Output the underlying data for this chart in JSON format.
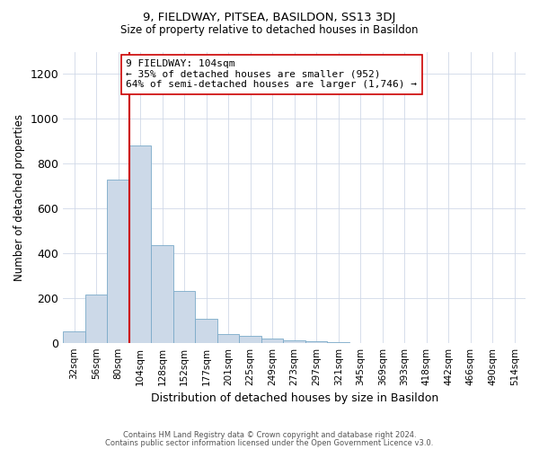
{
  "title1": "9, FIELDWAY, PITSEA, BASILDON, SS13 3DJ",
  "title2": "Size of property relative to detached houses in Basildon",
  "xlabel": "Distribution of detached houses by size in Basildon",
  "ylabel": "Number of detached properties",
  "categories": [
    "32sqm",
    "56sqm",
    "80sqm",
    "104sqm",
    "128sqm",
    "152sqm",
    "177sqm",
    "201sqm",
    "225sqm",
    "249sqm",
    "273sqm",
    "297sqm",
    "321sqm",
    "345sqm",
    "369sqm",
    "393sqm",
    "418sqm",
    "442sqm",
    "466sqm",
    "490sqm",
    "514sqm"
  ],
  "values": [
    50,
    215,
    730,
    880,
    435,
    230,
    105,
    40,
    30,
    20,
    10,
    5,
    2,
    0,
    0,
    0,
    0,
    0,
    0,
    0,
    0
  ],
  "bar_color": "#ccd9e8",
  "bar_edge_color": "#7aaac8",
  "vline_color": "#cc0000",
  "annotation_text": "9 FIELDWAY: 104sqm\n← 35% of detached houses are smaller (952)\n64% of semi-detached houses are larger (1,746) →",
  "annotation_box_color": "#ffffff",
  "annotation_box_edge": "#cc0000",
  "ylim": [
    0,
    1300
  ],
  "yticks": [
    0,
    200,
    400,
    600,
    800,
    1000,
    1200
  ],
  "footer1": "Contains HM Land Registry data © Crown copyright and database right 2024.",
  "footer2": "Contains public sector information licensed under the Open Government Licence v3.0.",
  "background_color": "#ffffff",
  "grid_color": "#d0d8e8"
}
